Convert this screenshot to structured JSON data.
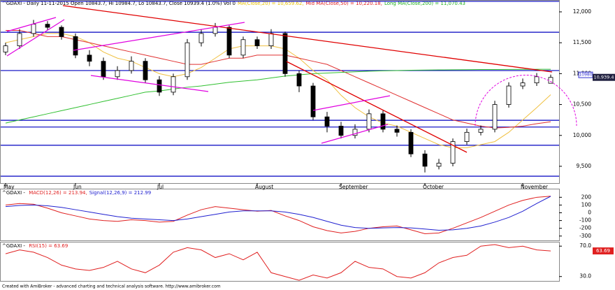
{
  "chart_data": [
    {
      "type": "candlestick",
      "title_parts": [
        {
          "text": "^GDAXI - Daily 11-11-2015 Open 10843.7, Hi 10984.7, Lo 10843.7, Close 10939.4 (1.0%) Vol 0",
          "color": "#000000"
        },
        {
          "text": "MA(Close,20) = 10,659.62,",
          "color": "#e8c000"
        },
        {
          "text": "Mid MA(Close,50) = 10,220.18,",
          "color": "#e02020"
        },
        {
          "text": "Long MA(Close,200) = 11,070.43",
          "color": "#20b020"
        }
      ],
      "categories": [
        "May",
        null,
        null,
        null,
        null,
        "Jun",
        null,
        null,
        null,
        null,
        null,
        "Jul",
        null,
        null,
        null,
        null,
        null,
        null,
        "August",
        null,
        null,
        null,
        null,
        null,
        "September",
        null,
        null,
        null,
        null,
        null,
        "October",
        null,
        null,
        null,
        null,
        null,
        null,
        "November",
        null,
        null
      ],
      "open": [
        11350,
        11450,
        11650,
        11800,
        11750,
        11600,
        11300,
        11200,
        10950,
        11050,
        11200,
        10900,
        10700,
        10950,
        11500,
        11650,
        11750,
        11300,
        11550,
        11450,
        11650,
        11000,
        10800,
        10300,
        10150,
        10000,
        10100,
        10350,
        10100,
        10050,
        9700,
        9500,
        9550,
        9900,
        10050,
        10100,
        10500,
        10800,
        10850,
        10843.7
      ],
      "high": [
        11500,
        11720,
        11870,
        11850,
        11780,
        11650,
        11380,
        11260,
        11120,
        11280,
        11250,
        10960,
        11000,
        11560,
        11720,
        11820,
        11780,
        11600,
        11600,
        11720,
        11680,
        11050,
        10850,
        10380,
        10220,
        10180,
        10420,
        10400,
        10160,
        10100,
        9760,
        9620,
        9950,
        10110,
        10160,
        10560,
        10860,
        10920,
        11010,
        10984.7
      ],
      "low": [
        11300,
        11400,
        11600,
        11700,
        11550,
        11250,
        11120,
        10900,
        10900,
        11000,
        10850,
        10640,
        10650,
        10900,
        11440,
        11600,
        11250,
        11250,
        11400,
        11400,
        10950,
        10700,
        10250,
        10050,
        9950,
        9950,
        10050,
        10050,
        9980,
        9650,
        9400,
        9450,
        9500,
        9850,
        10000,
        10050,
        10450,
        10750,
        10800,
        10843.7
      ],
      "close": [
        11450,
        11650,
        11800,
        11750,
        11600,
        11300,
        11200,
        10950,
        11050,
        11200,
        10900,
        10700,
        10950,
        11500,
        11650,
        11750,
        11300,
        11550,
        11450,
        11650,
        11000,
        10800,
        10300,
        10150,
        10000,
        10100,
        10350,
        10100,
        10050,
        9700,
        9500,
        9550,
        9900,
        10050,
        10100,
        10500,
        10800,
        10850,
        10950,
        10939.4
      ],
      "series": [
        {
          "name": "MA(Close,20)",
          "color": "#f0c040",
          "values": [
            11500,
            11550,
            11600,
            11650,
            11650,
            11600,
            11500,
            11350,
            11250,
            11200,
            11100,
            11000,
            10950,
            11000,
            11100,
            11250,
            11400,
            11450,
            11450,
            11450,
            11400,
            11250,
            11050,
            10900,
            10650,
            10450,
            10300,
            10200,
            10150,
            10050,
            9950,
            9850,
            9800,
            9800,
            9850,
            9900,
            10050,
            10250,
            10450,
            10659.62
          ]
        },
        {
          "name": "Mid MA(Close,50)",
          "color": "#e03030",
          "values": [
            11700,
            11700,
            11650,
            11600,
            11600,
            11550,
            11500,
            11450,
            11400,
            11350,
            11300,
            11250,
            11200,
            11150,
            11150,
            11200,
            11250,
            11250,
            11300,
            11300,
            11300,
            11250,
            11200,
            11150,
            11050,
            10950,
            10850,
            10750,
            10650,
            10550,
            10450,
            10350,
            10250,
            10200,
            10150,
            10120,
            10130,
            10150,
            10190,
            10220.18
          ]
        },
        {
          "name": "Long MA(Close,200)",
          "color": "#30c030",
          "values": [
            10200,
            10250,
            10300,
            10350,
            10400,
            10450,
            10500,
            10550,
            10600,
            10650,
            10700,
            10720,
            10750,
            10780,
            10800,
            10830,
            10860,
            10880,
            10900,
            10930,
            10960,
            10980,
            11000,
            11010,
            11020,
            11030,
            11040,
            11045,
            11050,
            11055,
            11058,
            11060,
            11062,
            11064,
            11066,
            11067,
            11068,
            11069,
            11070,
            11070.43
          ]
        }
      ],
      "hlines": [
        12170,
        11670,
        11050,
        10245,
        10135,
        9840,
        9340
      ],
      "level_label": 10980,
      "last_label": {
        "value": 10939.4,
        "label": "10,939.4"
      },
      "ylim": [
        9228,
        12192
      ],
      "yticks": [
        {
          "value": 9500,
          "label": "9,500"
        },
        {
          "value": 10000,
          "label": "10,000"
        },
        {
          "value": 10500,
          "label": "10,500"
        },
        {
          "value": 11000,
          "label": "11,000"
        },
        {
          "value": 11500,
          "label": "11,500"
        },
        {
          "value": 12000,
          "label": "12,000"
        }
      ]
    },
    {
      "type": "line",
      "title_parts": [
        {
          "text": "^GDAXI - ",
          "color": "#000000"
        },
        {
          "text": "MACD(12,26) = 213.94,",
          "color": "#e02020"
        },
        {
          "text": "Signal(12,26,9) = 212.99",
          "color": "#2020d0"
        }
      ],
      "series": [
        {
          "name": "MACD(12,26)",
          "color": "#e02020",
          "values": [
            100,
            120,
            110,
            60,
            0,
            -40,
            -80,
            -100,
            -110,
            -90,
            -100,
            -120,
            -110,
            -30,
            40,
            80,
            60,
            40,
            20,
            30,
            -40,
            -100,
            -180,
            -230,
            -260,
            -240,
            -200,
            -180,
            -170,
            -220,
            -270,
            -260,
            -200,
            -130,
            -60,
            20,
            100,
            160,
            200,
            213.94
          ]
        },
        {
          "name": "Signal(12,26,9)",
          "color": "#2020d0",
          "values": [
            80,
            95,
            100,
            90,
            70,
            40,
            10,
            -20,
            -50,
            -70,
            -80,
            -90,
            -100,
            -80,
            -50,
            -20,
            10,
            25,
            25,
            25,
            10,
            -20,
            -60,
            -110,
            -160,
            -190,
            -200,
            -195,
            -190,
            -195,
            -210,
            -225,
            -220,
            -200,
            -170,
            -120,
            -60,
            20,
            120,
            212.99
          ]
        }
      ],
      "ylim": [
        -365,
        302
      ],
      "yticks": [
        -300,
        -200,
        -100,
        0,
        100,
        200
      ]
    },
    {
      "type": "line",
      "title_parts": [
        {
          "text": "^GDAXI - ",
          "color": "#000000"
        },
        {
          "text": "RSI(15) = 63.69",
          "color": "#e02020"
        }
      ],
      "series": [
        {
          "name": "RSI(15)",
          "color": "#e02020",
          "values": [
            60,
            65,
            62,
            55,
            45,
            40,
            38,
            42,
            50,
            40,
            35,
            45,
            62,
            68,
            65,
            55,
            60,
            52,
            62,
            35,
            30,
            25,
            32,
            28,
            35,
            50,
            42,
            40,
            30,
            28,
            35,
            48,
            55,
            58,
            70,
            72,
            68,
            70,
            65,
            63.69
          ]
        }
      ],
      "last_label": 63.69,
      "ylim": [
        23.3,
        74.8
      ],
      "yticks": [
        {
          "value": 30,
          "label": "30.0"
        },
        {
          "value": 70,
          "label": "70.0"
        }
      ]
    }
  ],
  "footer": "Created with AmiBroker - advanced charting and technical analysis software. http://www.amibroker.com"
}
